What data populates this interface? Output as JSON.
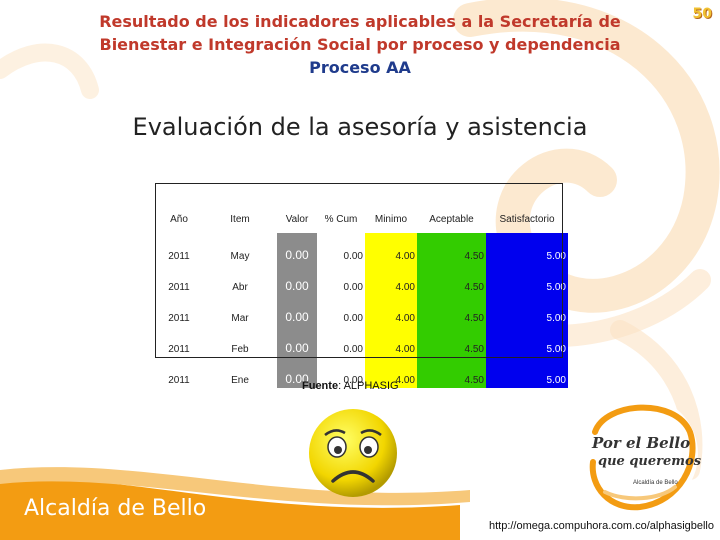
{
  "header": {
    "title_line1": "Resultado de los indicadores aplicables a la Secretaría de",
    "title_line2": "Bienestar e Integración Social por proceso y dependencia",
    "title_line3": "Proceso AA",
    "page_number": "50"
  },
  "heading": "Evaluación de la asesoría y asistencia",
  "table": {
    "columns": [
      "Año",
      "Item",
      "Valor",
      "% Cum",
      "Minimo",
      "Aceptable",
      "Satisfactorio"
    ],
    "rows": [
      [
        "2011",
        "May",
        "0.00",
        "0.00",
        "4.00",
        "4.50",
        "5.00"
      ],
      [
        "2011",
        "Abr",
        "0.00",
        "0.00",
        "4.00",
        "4.50",
        "5.00"
      ],
      [
        "2011",
        "Mar",
        "0.00",
        "0.00",
        "4.00",
        "4.50",
        "5.00"
      ],
      [
        "2011",
        "Feb",
        "0.00",
        "0.00",
        "4.00",
        "4.50",
        "5.00"
      ],
      [
        "2011",
        "Ene",
        "0.00",
        "0.00",
        "4.00",
        "4.50",
        "5.00"
      ]
    ]
  },
  "source": {
    "label": "Fuente",
    "value": ": ALPHASIG"
  },
  "footer": {
    "logo_text": "Alcaldía de Bello",
    "badge_line1": "Por el Bello",
    "badge_line2": "que queremos",
    "badge_line3": "Alcaldía de Bello",
    "url": "http://omega.compuhora.com.co/alphasigbello"
  },
  "colors": {
    "title_red": "#c0392b",
    "title_blue": "#1f3b8c",
    "orange_brand": "#f39c12",
    "valor_gray": "#8c8c8c",
    "minimo_yellow": "#ffff00",
    "aceptable_green": "#33cc00",
    "satisfactorio_blue": "#0000ee"
  },
  "icons": [
    "sad-face-icon",
    "orange-swirl-decoration",
    "bello-badge-logo"
  ]
}
